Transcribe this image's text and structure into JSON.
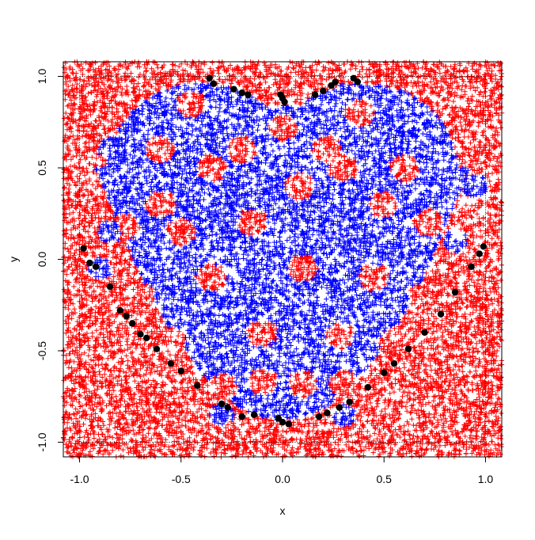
{
  "colors": {
    "outside": "#ff0000",
    "inside": "#0000ff",
    "boundary": "#000000",
    "background": "#ffffff",
    "box": "#000000"
  },
  "chart_data": {
    "type": "scatter",
    "title": "",
    "xlabel": "x",
    "ylabel": "y",
    "xlim": [
      -1.08,
      1.08
    ],
    "ylim": [
      -1.08,
      1.08
    ],
    "xticks": [
      -1.0,
      -0.5,
      0.0,
      0.5,
      1.0
    ],
    "xtick_labels": [
      "-1.0",
      "-0.5",
      "0.0",
      "0.5",
      "1.0"
    ],
    "yticks": [
      -1.0,
      -0.5,
      0.0,
      0.5,
      1.0
    ],
    "ytick_labels": [
      "-1.0",
      "-0.5",
      "0.0",
      "0.5",
      "1.0"
    ],
    "grid": false,
    "reference_box": {
      "x": [
        -1.0,
        1.0
      ],
      "y": [
        -1.0,
        1.0
      ],
      "style": "dotted"
    },
    "marker": "+",
    "series": [
      {
        "color": "#ff0000",
        "marker": "+",
        "description_of_points": "uniform points outside region (also small clusters inside)",
        "sample_count": 9000,
        "clusters": [
          [
            -0.82,
            0.82
          ],
          [
            -0.6,
            0.6
          ],
          [
            -0.2,
            0.6
          ],
          [
            0.22,
            0.6
          ],
          [
            0.6,
            0.5
          ],
          [
            -0.35,
            0.5
          ],
          [
            0.3,
            0.5
          ],
          [
            -0.78,
            0.18
          ],
          [
            -0.5,
            0.15
          ],
          [
            -0.15,
            0.2
          ],
          [
            0.08,
            0.4
          ],
          [
            0.5,
            0.3
          ],
          [
            0.72,
            0.2
          ],
          [
            -0.7,
            -0.2
          ],
          [
            -0.35,
            -0.1
          ],
          [
            0.1,
            -0.05
          ],
          [
            0.45,
            -0.1
          ],
          [
            -0.55,
            -0.45
          ],
          [
            -0.1,
            -0.4
          ],
          [
            0.28,
            -0.42
          ],
          [
            0.55,
            -0.45
          ],
          [
            -0.3,
            -0.7
          ],
          [
            -0.1,
            -0.67
          ],
          [
            0.1,
            -0.68
          ],
          [
            0.3,
            -0.68
          ],
          [
            -0.45,
            0.85
          ],
          [
            0.0,
            0.72
          ],
          [
            0.38,
            0.8
          ],
          [
            -0.6,
            0.3
          ],
          [
            0.7,
            -0.2
          ]
        ]
      },
      {
        "color": "#0000ff",
        "marker": "+",
        "description_of_points": "uniform points inside heart-shaped region",
        "sample_count": 6000,
        "clusters": [
          [
            -0.55,
            0.75
          ],
          [
            -0.3,
            0.9
          ],
          [
            0.3,
            0.9
          ],
          [
            0.55,
            0.75
          ],
          [
            -0.85,
            0.15
          ],
          [
            -0.9,
            -0.05
          ],
          [
            0.85,
            0.1
          ],
          [
            0.95,
            0.4
          ],
          [
            -0.85,
            0.6
          ],
          [
            -0.3,
            -0.85
          ],
          [
            0.3,
            -0.85
          ]
        ]
      }
    ],
    "boundary": {
      "color": "#000000",
      "marker": "filled-circle",
      "points": [
        [
          -0.98,
          0.06
        ],
        [
          -0.95,
          -0.02
        ],
        [
          -0.92,
          -0.04
        ],
        [
          -0.85,
          -0.15
        ],
        [
          -0.8,
          -0.28
        ],
        [
          -0.77,
          -0.31
        ],
        [
          -0.74,
          -0.35
        ],
        [
          -0.7,
          -0.41
        ],
        [
          -0.67,
          -0.43
        ],
        [
          -0.62,
          -0.49
        ],
        [
          -0.55,
          -0.57
        ],
        [
          -0.5,
          -0.61
        ],
        [
          -0.42,
          -0.69
        ],
        [
          -0.3,
          -0.79
        ],
        [
          -0.27,
          -0.81
        ],
        [
          -0.2,
          -0.86
        ],
        [
          -0.14,
          -0.85
        ],
        [
          -0.02,
          -0.87
        ],
        [
          0.0,
          -0.89
        ],
        [
          0.03,
          -0.9
        ],
        [
          0.18,
          -0.86
        ],
        [
          0.22,
          -0.84
        ],
        [
          0.28,
          -0.81
        ],
        [
          0.33,
          -0.78
        ],
        [
          0.42,
          -0.7
        ],
        [
          0.5,
          -0.62
        ],
        [
          0.55,
          -0.57
        ],
        [
          0.62,
          -0.49
        ],
        [
          0.7,
          -0.4
        ],
        [
          0.78,
          -0.3
        ],
        [
          0.85,
          -0.18
        ],
        [
          0.93,
          -0.04
        ],
        [
          0.97,
          0.03
        ],
        [
          0.99,
          0.07
        ],
        [
          -0.36,
          0.99
        ],
        [
          -0.34,
          0.96
        ],
        [
          -0.24,
          0.93
        ],
        [
          -0.2,
          0.91
        ],
        [
          -0.17,
          0.9
        ],
        [
          0.0,
          0.88
        ],
        [
          0.01,
          0.86
        ],
        [
          -0.01,
          0.9
        ],
        [
          0.16,
          0.9
        ],
        [
          0.2,
          0.92
        ],
        [
          0.24,
          0.95
        ],
        [
          0.26,
          0.97
        ],
        [
          0.35,
          0.99
        ],
        [
          0.37,
          0.97
        ]
      ]
    }
  }
}
